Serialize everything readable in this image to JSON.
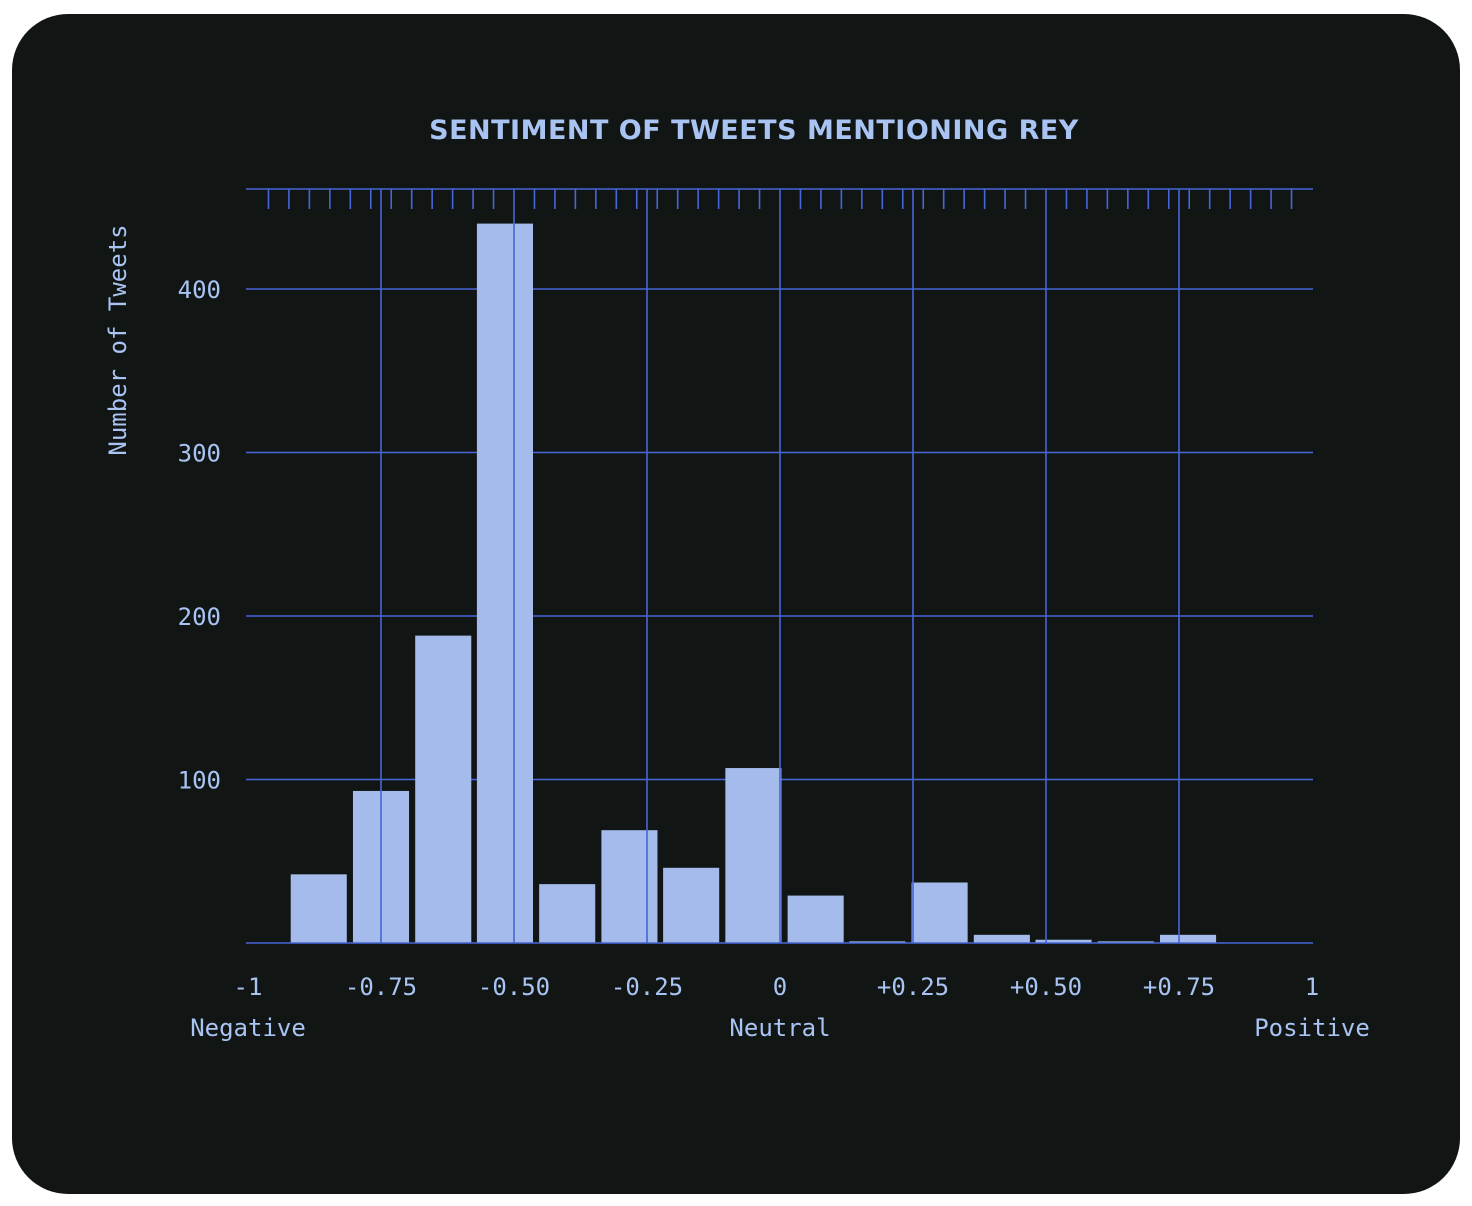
{
  "chart_data": {
    "type": "bar",
    "title": "SENTIMENT OF TWEETS MENTIONING REY",
    "ylabel": "Number of Tweets",
    "xlabel": "",
    "x_tick_labels": [
      {
        "value": -1,
        "label": "-1"
      },
      {
        "value": -0.75,
        "label": "-0.75"
      },
      {
        "value": -0.5,
        "label": "-0.50"
      },
      {
        "value": -0.25,
        "label": "-0.25"
      },
      {
        "value": 0,
        "label": "0"
      },
      {
        "value": 0.25,
        "label": "+0.25"
      },
      {
        "value": 0.5,
        "label": "+0.50"
      },
      {
        "value": 0.75,
        "label": "+0.75"
      },
      {
        "value": 1,
        "label": "1"
      }
    ],
    "x_region_labels": [
      {
        "value": -1,
        "label": "Negative"
      },
      {
        "value": 0,
        "label": "Neutral"
      },
      {
        "value": 1,
        "label": "Positive"
      }
    ],
    "y_ticks": [
      100,
      200,
      300,
      400
    ],
    "xlim": [
      -1,
      1
    ],
    "ylim": [
      0,
      460
    ],
    "grid": true,
    "bin_width": 0.1167,
    "bins": [
      {
        "x": -0.867,
        "value": 42
      },
      {
        "x": -0.75,
        "value": 93
      },
      {
        "x": -0.633,
        "value": 188
      },
      {
        "x": -0.517,
        "value": 440
      },
      {
        "x": -0.4,
        "value": 36
      },
      {
        "x": -0.283,
        "value": 69
      },
      {
        "x": -0.167,
        "value": 46
      },
      {
        "x": -0.05,
        "value": 107
      },
      {
        "x": 0.067,
        "value": 29
      },
      {
        "x": 0.183,
        "value": 1
      },
      {
        "x": 0.3,
        "value": 37
      },
      {
        "x": 0.417,
        "value": 5
      },
      {
        "x": 0.533,
        "value": 2
      },
      {
        "x": 0.65,
        "value": 1
      },
      {
        "x": 0.767,
        "value": 5
      }
    ]
  }
}
